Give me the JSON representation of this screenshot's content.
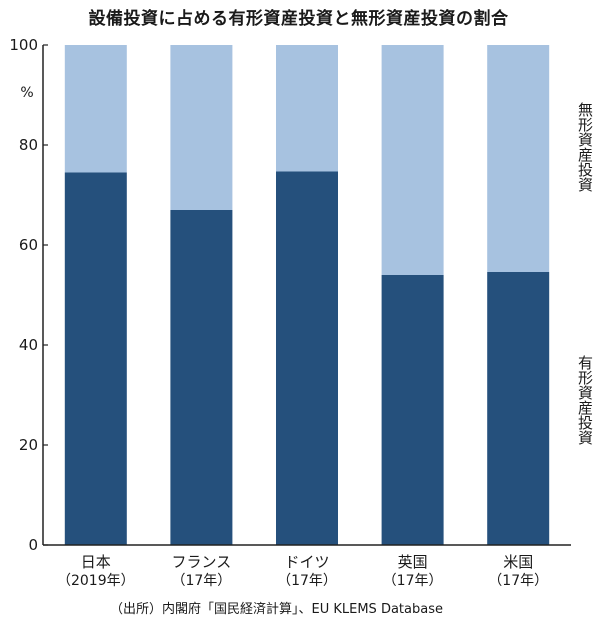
{
  "title": "設備投資に占める有形資産投資と無形資産投資の割合",
  "unit": "%",
  "source": "（出所）内閣府「国民経済計算」、EU KLEMS Database",
  "colors": {
    "tangible": "#25507c",
    "intangible": "#a7c2e0",
    "axis": "#222222"
  },
  "chart_data": {
    "type": "bar",
    "stacked": true,
    "categories": [
      {
        "name": "日本",
        "sub": "（2019年）"
      },
      {
        "name": "フランス",
        "sub": "（17年）"
      },
      {
        "name": "ドイツ",
        "sub": "（17年）"
      },
      {
        "name": "英国",
        "sub": "（17年）"
      },
      {
        "name": "米国",
        "sub": "（17年）"
      }
    ],
    "series": [
      {
        "name": "有形資産投資",
        "values": [
          74.5,
          67,
          74.7,
          54,
          54.6
        ]
      },
      {
        "name": "無形資産投資",
        "values": [
          25.5,
          33,
          25.3,
          46,
          45.4
        ]
      }
    ],
    "ylim": [
      0,
      100
    ],
    "yticks": [
      "0",
      "20",
      "40",
      "60",
      "80",
      "100"
    ],
    "ylabel": "%",
    "grid": false
  }
}
